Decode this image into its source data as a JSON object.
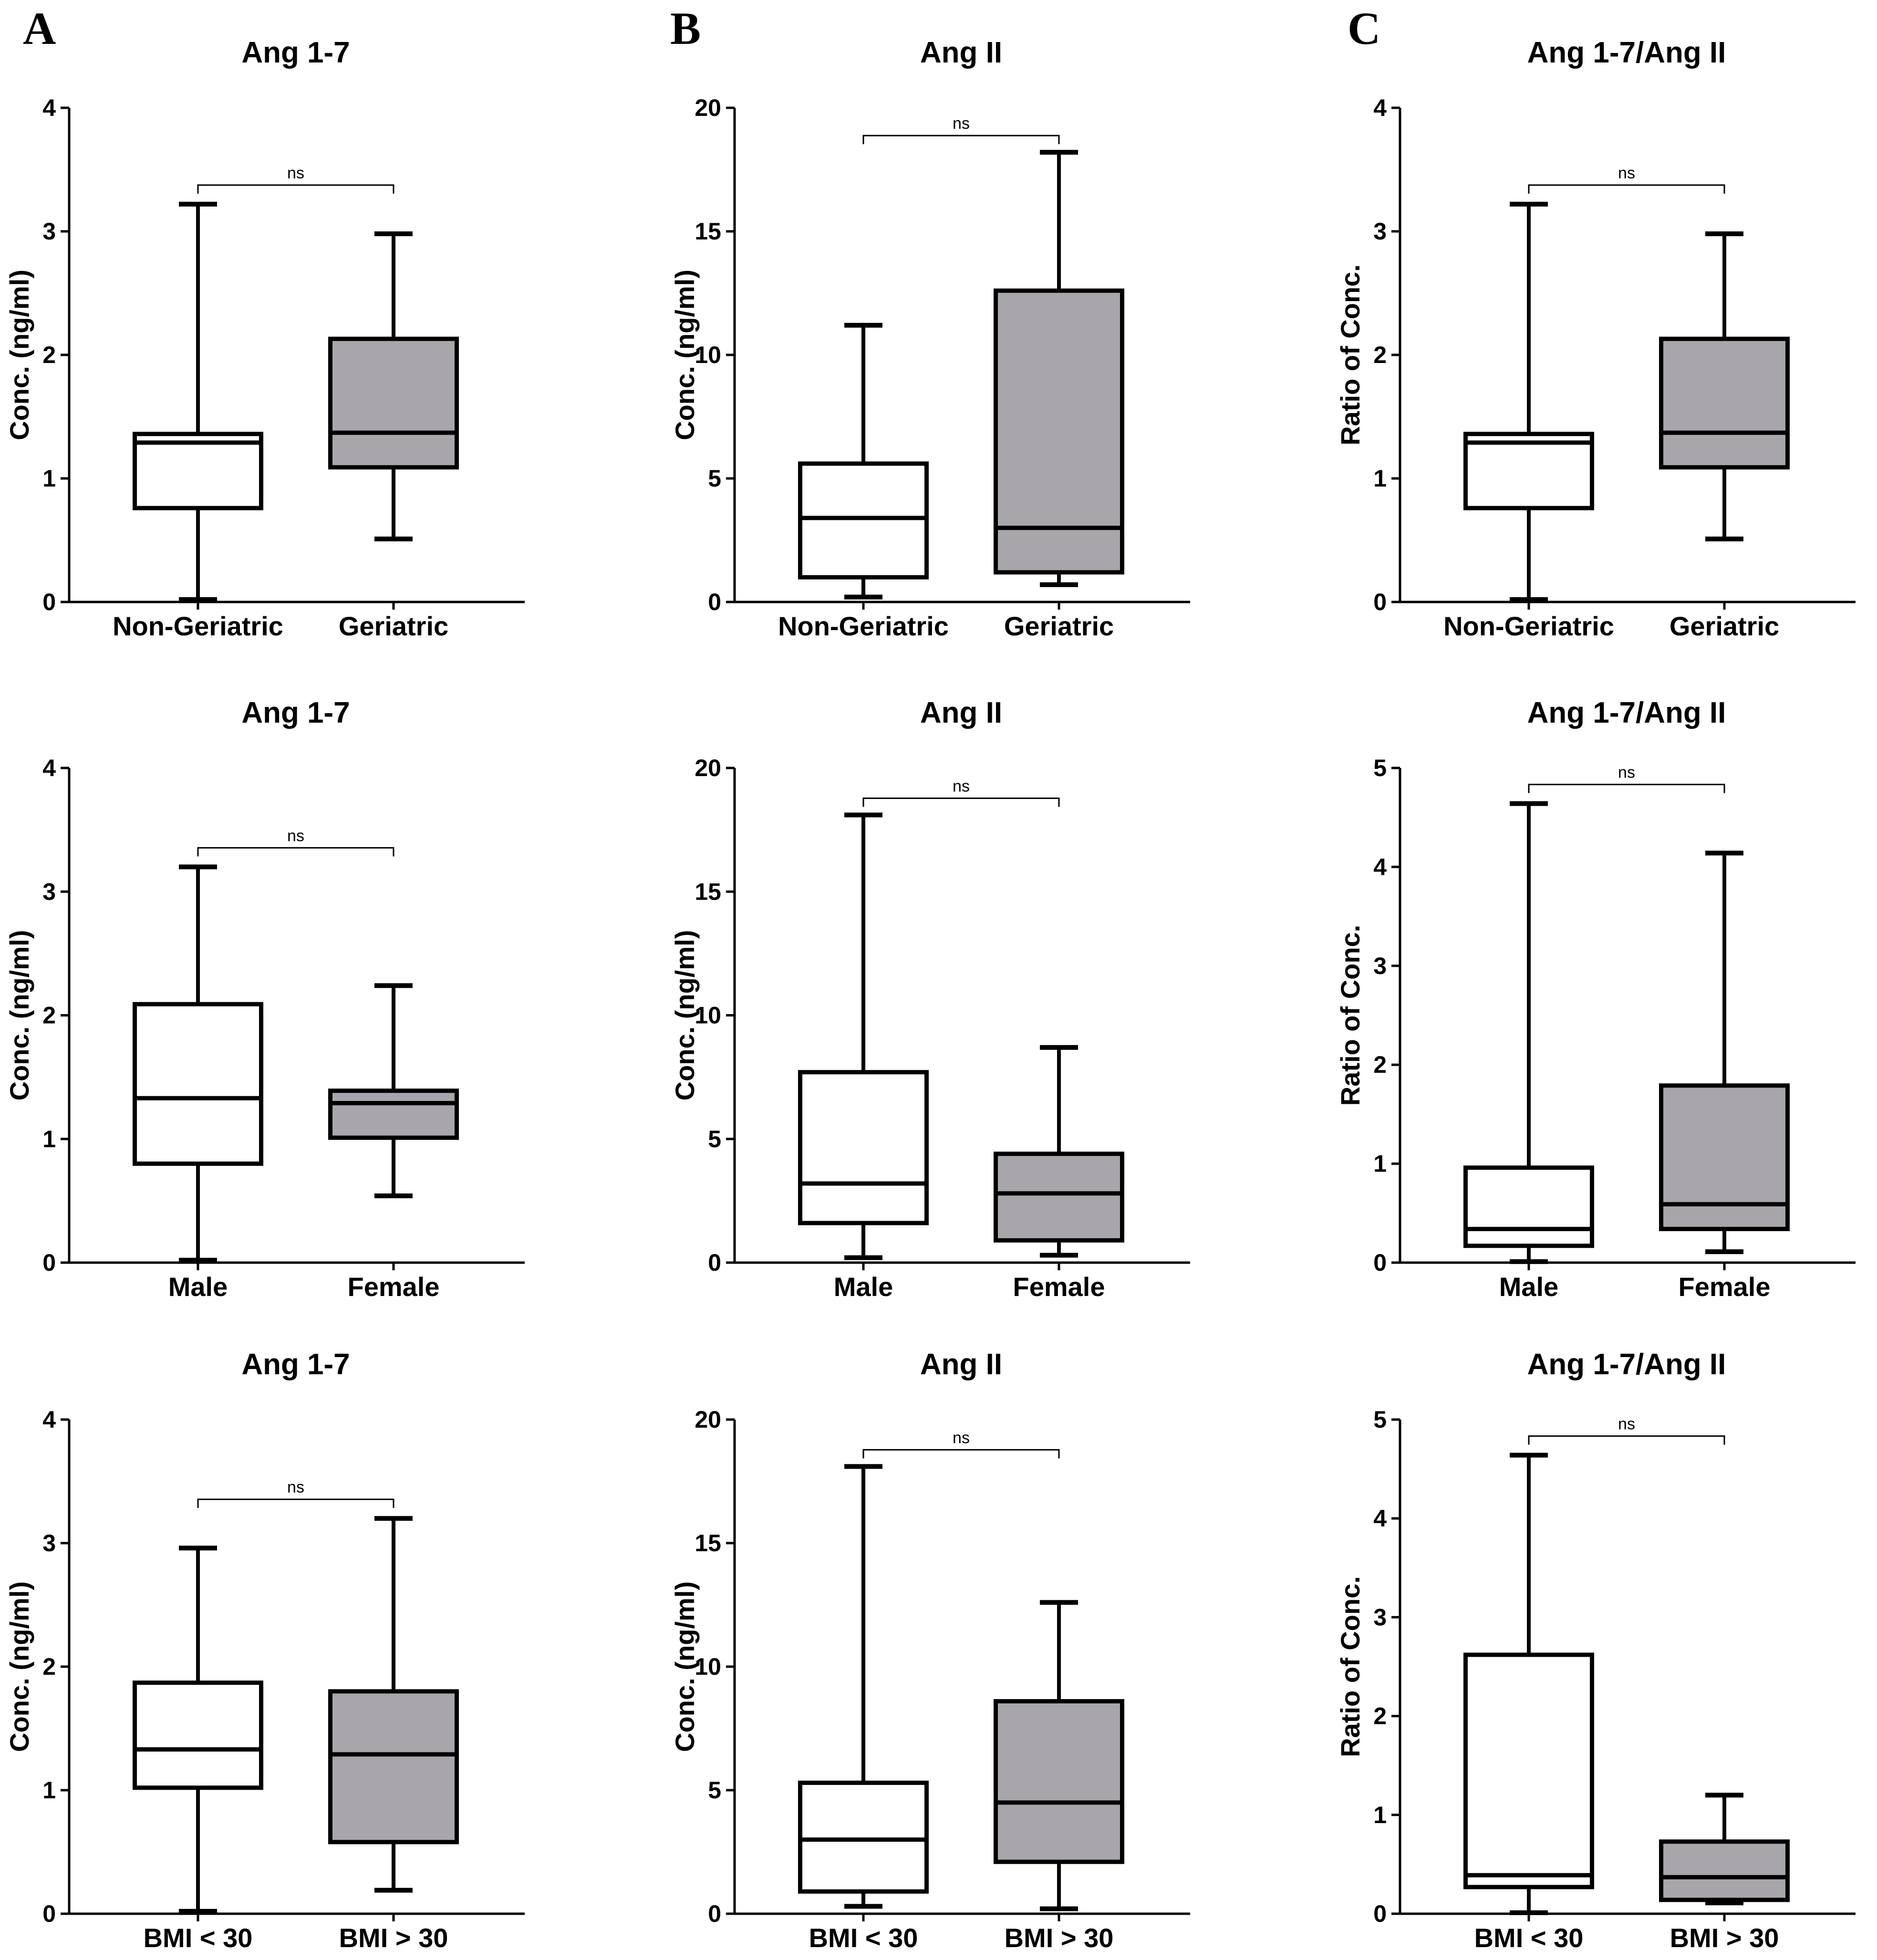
{
  "figure": {
    "panel_labels": [
      "A",
      "B",
      "C"
    ],
    "colors": {
      "group1_fill": "#ffffff",
      "group2_fill": "#a8a5ab",
      "stroke": "#000000"
    }
  },
  "chart_data": [
    {
      "type": "box",
      "title": "Ang 1-7",
      "ylabel": "Conc. (ng/ml)",
      "ylim": [
        0,
        4
      ],
      "yticks": [
        0,
        1,
        2,
        3,
        4
      ],
      "categories": [
        "Non-Geriatric",
        "Geriatric"
      ],
      "annotation": "ns",
      "boxes": [
        {
          "min": 0.02,
          "q1": 0.76,
          "median": 1.29,
          "q3": 1.36,
          "max": 3.22
        },
        {
          "min": 0.51,
          "q1": 1.09,
          "median": 1.37,
          "q3": 2.13,
          "max": 2.98
        }
      ]
    },
    {
      "type": "box",
      "title": "Ang II",
      "ylabel": "Conc. (ng/ml)",
      "ylim": [
        0,
        20
      ],
      "yticks": [
        0,
        5,
        10,
        15,
        20
      ],
      "categories": [
        "Non-Geriatric",
        "Geriatric"
      ],
      "annotation": "ns",
      "boxes": [
        {
          "min": 0.2,
          "q1": 1.0,
          "median": 3.4,
          "q3": 5.6,
          "max": 11.2
        },
        {
          "min": 0.7,
          "q1": 1.2,
          "median": 3.0,
          "q3": 12.6,
          "max": 18.2
        }
      ]
    },
    {
      "type": "box",
      "title": "Ang 1-7/Ang II",
      "ylabel": "Ratio of Conc.",
      "ylim": [
        0,
        4
      ],
      "yticks": [
        0,
        1,
        2,
        3,
        4
      ],
      "categories": [
        "Non-Geriatric",
        "Geriatric"
      ],
      "annotation": "ns",
      "boxes": [
        {
          "min": 0.02,
          "q1": 0.76,
          "median": 1.29,
          "q3": 1.36,
          "max": 3.22
        },
        {
          "min": 0.51,
          "q1": 1.09,
          "median": 1.37,
          "q3": 2.13,
          "max": 2.98
        }
      ]
    },
    {
      "type": "box",
      "title": "Ang 1-7",
      "ylabel": "Conc. (ng/ml)",
      "ylim": [
        0,
        4
      ],
      "yticks": [
        0,
        1,
        2,
        3,
        4
      ],
      "categories": [
        "Male",
        "Female"
      ],
      "annotation": "ns",
      "boxes": [
        {
          "min": 0.02,
          "q1": 0.8,
          "median": 1.33,
          "q3": 2.09,
          "max": 3.2
        },
        {
          "min": 0.54,
          "q1": 1.01,
          "median": 1.29,
          "q3": 1.39,
          "max": 2.24
        }
      ]
    },
    {
      "type": "box",
      "title": "Ang II",
      "ylabel": "Conc. (ng/ml)",
      "ylim": [
        0,
        20
      ],
      "yticks": [
        0,
        5,
        10,
        15,
        20
      ],
      "categories": [
        "Male",
        "Female"
      ],
      "annotation": "ns",
      "boxes": [
        {
          "min": 0.2,
          "q1": 1.6,
          "median": 3.2,
          "q3": 7.7,
          "max": 18.1
        },
        {
          "min": 0.3,
          "q1": 0.9,
          "median": 2.8,
          "q3": 4.4,
          "max": 8.7
        }
      ]
    },
    {
      "type": "box",
      "title": "Ang 1-7/Ang II",
      "ylabel": "Ratio of Conc.",
      "ylim": [
        0,
        5
      ],
      "yticks": [
        0,
        1,
        2,
        3,
        4,
        5
      ],
      "categories": [
        "Male",
        "Female"
      ],
      "annotation": "ns",
      "boxes": [
        {
          "min": 0.01,
          "q1": 0.17,
          "median": 0.34,
          "q3": 0.96,
          "max": 4.64
        },
        {
          "min": 0.11,
          "q1": 0.34,
          "median": 0.59,
          "q3": 1.79,
          "max": 4.14
        }
      ]
    },
    {
      "type": "box",
      "title": "Ang 1-7",
      "ylabel": "Conc. (ng/ml)",
      "ylim": [
        0,
        4
      ],
      "yticks": [
        0,
        1,
        2,
        3,
        4
      ],
      "categories": [
        "BMI < 30",
        "BMI > 30"
      ],
      "annotation": "ns",
      "boxes": [
        {
          "min": 0.02,
          "q1": 1.02,
          "median": 1.33,
          "q3": 1.87,
          "max": 2.96
        },
        {
          "min": 0.19,
          "q1": 0.58,
          "median": 1.29,
          "q3": 1.8,
          "max": 3.2
        }
      ]
    },
    {
      "type": "box",
      "title": "Ang II",
      "ylabel": "Conc. (ng/ml)",
      "ylim": [
        0,
        20
      ],
      "yticks": [
        0,
        5,
        10,
        15,
        20
      ],
      "categories": [
        "BMI < 30",
        "BMI > 30"
      ],
      "annotation": "ns",
      "boxes": [
        {
          "min": 0.3,
          "q1": 0.9,
          "median": 3.0,
          "q3": 5.3,
          "max": 18.1
        },
        {
          "min": 0.2,
          "q1": 2.1,
          "median": 4.5,
          "q3": 8.6,
          "max": 12.6
        }
      ]
    },
    {
      "type": "box",
      "title": "Ang 1-7/Ang II",
      "ylabel": "Ratio of Conc.",
      "ylim": [
        0,
        5
      ],
      "yticks": [
        0,
        1,
        2,
        3,
        4,
        5
      ],
      "categories": [
        "BMI < 30",
        "BMI > 30"
      ],
      "annotation": "ns",
      "boxes": [
        {
          "min": 0.01,
          "q1": 0.27,
          "median": 0.39,
          "q3": 2.62,
          "max": 4.64
        },
        {
          "min": 0.11,
          "q1": 0.14,
          "median": 0.37,
          "q3": 0.73,
          "max": 1.2
        }
      ]
    }
  ]
}
